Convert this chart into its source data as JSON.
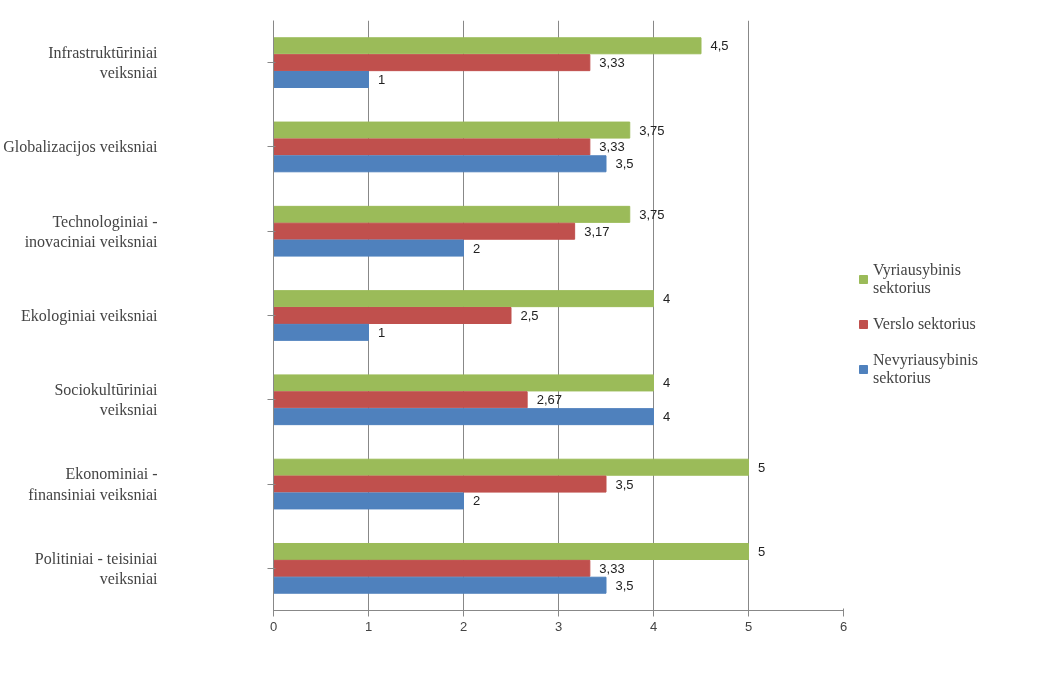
{
  "chart_data": {
    "type": "bar",
    "orientation": "horizontal",
    "categories": [
      "Infrastruktūriniai veiksniai",
      "Globalizacijos veiksniai",
      "Technologiniai - inovaciniai veiksniai",
      "Ekologiniai veiksniai",
      "Sociokultūriniai veiksniai",
      "Ekonominiai - finansiniai veiksniai",
      "Politiniai - teisiniai veiksniai"
    ],
    "series": [
      {
        "name": "Vyriausybinis sektorius",
        "color": "#9bbb59",
        "values": [
          4.5,
          3.75,
          3.75,
          4,
          4,
          5,
          5
        ],
        "value_labels": [
          "4,5",
          "3,75",
          "3,75",
          "4",
          "4",
          "5",
          "5"
        ]
      },
      {
        "name": "Verslo sektorius",
        "color": "#c0504d",
        "values": [
          3.33,
          3.33,
          3.17,
          2.5,
          2.67,
          3.5,
          3.33
        ],
        "value_labels": [
          "3,33",
          "3,33",
          "3,17",
          "2,5",
          "2,67",
          "3,5",
          "3,33"
        ]
      },
      {
        "name": "Nevyriausybinis sektorius",
        "color": "#4f81bd",
        "values": [
          1,
          3.5,
          2,
          1,
          4,
          2,
          3.5
        ],
        "value_labels": [
          "1",
          "3,5",
          "2",
          "1",
          "4",
          "2",
          "3,5"
        ]
      }
    ],
    "xlim": [
      0,
      6
    ],
    "xticks": [
      0,
      1,
      2,
      3,
      4,
      5,
      6
    ],
    "grid": "x",
    "legend": "right"
  }
}
